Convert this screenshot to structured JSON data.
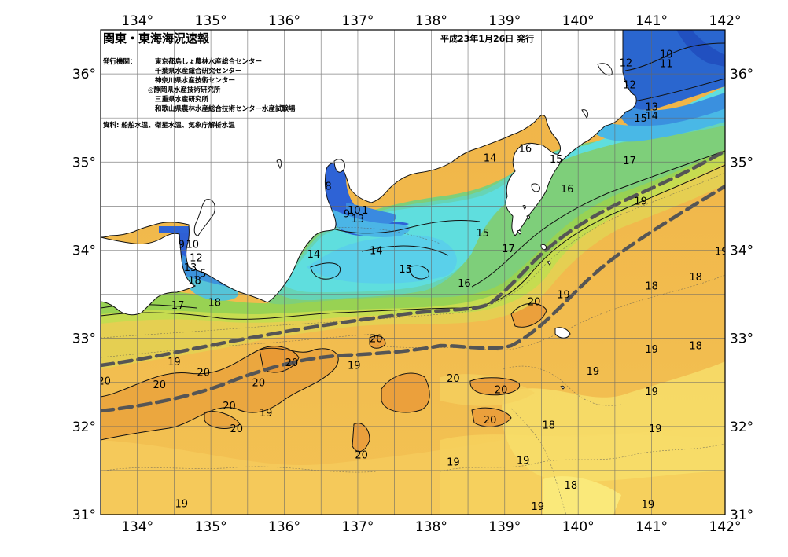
{
  "map": {
    "title": "関東・東海海況速報",
    "issue_date": "平成23年1月26日 発行",
    "publisher_label": "発行機関：",
    "publishers": [
      "東京都島しょ農林水産総合センター",
      "千葉県水産総合研究センター",
      "神奈川県水産技術センター",
      "◎静岡県水産技術研究所",
      "三重県水産研究所",
      "和歌山県農林水産総合技術センター水産試験場"
    ],
    "source": "資料: 船舶水温、衛星水温、気象庁解析水温",
    "lon_labels": [
      "134°",
      "135°",
      "136°",
      "137°",
      "138°",
      "139°",
      "140°",
      "141°",
      "142°"
    ],
    "lat_labels": [
      "36°",
      "35°",
      "34°",
      "33°",
      "32°",
      "31°"
    ],
    "lon_range": [
      133.5,
      142
    ],
    "lat_range": [
      31,
      36.5
    ],
    "contour_labels": [
      {
        "t": "10",
        "lon": 141.2,
        "lat": 36.23
      },
      {
        "t": "11",
        "lon": 141.2,
        "lat": 36.12
      },
      {
        "t": "12",
        "lon": 140.65,
        "lat": 36.13
      },
      {
        "t": "12",
        "lon": 140.7,
        "lat": 35.88
      },
      {
        "t": "13",
        "lon": 141.0,
        "lat": 35.63
      },
      {
        "t": "14",
        "lon": 141.0,
        "lat": 35.53
      },
      {
        "t": "15",
        "lon": 140.85,
        "lat": 35.5
      },
      {
        "t": "14",
        "lon": 138.8,
        "lat": 35.05
      },
      {
        "t": "16",
        "lon": 139.28,
        "lat": 35.16
      },
      {
        "t": "15",
        "lon": 139.7,
        "lat": 35.04
      },
      {
        "t": "16",
        "lon": 139.85,
        "lat": 34.7
      },
      {
        "t": "17",
        "lon": 140.7,
        "lat": 35.02
      },
      {
        "t": "8",
        "lon": 136.6,
        "lat": 34.73
      },
      {
        "t": "9",
        "lon": 136.85,
        "lat": 34.42
      },
      {
        "t": "10",
        "lon": 136.95,
        "lat": 34.46
      },
      {
        "t": "1",
        "lon": 137.1,
        "lat": 34.46
      },
      {
        "t": "13",
        "lon": 137.0,
        "lat": 34.36
      },
      {
        "t": "15",
        "lon": 138.7,
        "lat": 34.2
      },
      {
        "t": "14",
        "lon": 136.4,
        "lat": 33.96
      },
      {
        "t": "14",
        "lon": 137.25,
        "lat": 34.0
      },
      {
        "t": "15",
        "lon": 137.65,
        "lat": 33.79
      },
      {
        "t": "16",
        "lon": 138.45,
        "lat": 33.63
      },
      {
        "t": "17",
        "lon": 139.05,
        "lat": 34.02
      },
      {
        "t": "9",
        "lon": 134.6,
        "lat": 34.07
      },
      {
        "t": "10",
        "lon": 134.75,
        "lat": 34.07
      },
      {
        "t": "12",
        "lon": 134.8,
        "lat": 33.92
      },
      {
        "t": "13",
        "lon": 134.72,
        "lat": 33.81
      },
      {
        "t": "15",
        "lon": 134.85,
        "lat": 33.74
      },
      {
        "t": "18",
        "lon": 134.78,
        "lat": 33.66
      },
      {
        "t": "17",
        "lon": 134.55,
        "lat": 33.38
      },
      {
        "t": "18",
        "lon": 135.05,
        "lat": 33.41
      },
      {
        "t": "19",
        "lon": 140.85,
        "lat": 34.56
      },
      {
        "t": "19",
        "lon": 141.95,
        "lat": 33.99
      },
      {
        "t": "20",
        "lon": 139.4,
        "lat": 33.42
      },
      {
        "t": "19",
        "lon": 139.8,
        "lat": 33.5
      },
      {
        "t": "18",
        "lon": 141.0,
        "lat": 33.6
      },
      {
        "t": "18",
        "lon": 141.6,
        "lat": 33.7
      },
      {
        "t": "19",
        "lon": 141.0,
        "lat": 32.88
      },
      {
        "t": "18",
        "lon": 141.6,
        "lat": 32.92
      },
      {
        "t": "20",
        "lon": 137.25,
        "lat": 33.0
      },
      {
        "t": "20",
        "lon": 136.1,
        "lat": 32.73
      },
      {
        "t": "19",
        "lon": 136.95,
        "lat": 32.7
      },
      {
        "t": "19",
        "lon": 134.5,
        "lat": 32.74
      },
      {
        "t": "20",
        "lon": 134.9,
        "lat": 32.62
      },
      {
        "t": "20",
        "lon": 135.65,
        "lat": 32.5
      },
      {
        "t": "20",
        "lon": 134.3,
        "lat": 32.48
      },
      {
        "t": "20",
        "lon": 133.55,
        "lat": 32.52
      },
      {
        "t": "20",
        "lon": 135.25,
        "lat": 32.24
      },
      {
        "t": "19",
        "lon": 135.75,
        "lat": 32.16
      },
      {
        "t": "20",
        "lon": 138.3,
        "lat": 32.55
      },
      {
        "t": "20",
        "lon": 138.95,
        "lat": 32.42
      },
      {
        "t": "20",
        "lon": 138.8,
        "lat": 32.08
      },
      {
        "t": "18",
        "lon": 139.6,
        "lat": 32.02
      },
      {
        "t": "19",
        "lon": 140.2,
        "lat": 32.63
      },
      {
        "t": "19",
        "lon": 141.0,
        "lat": 32.4
      },
      {
        "t": "20",
        "lon": 135.35,
        "lat": 31.98
      },
      {
        "t": "20",
        "lon": 137.05,
        "lat": 31.68
      },
      {
        "t": "19",
        "lon": 138.3,
        "lat": 31.6
      },
      {
        "t": "19",
        "lon": 139.25,
        "lat": 31.62
      },
      {
        "t": "19",
        "lon": 141.05,
        "lat": 31.98
      },
      {
        "t": "18",
        "lon": 139.9,
        "lat": 31.34
      },
      {
        "t": "19",
        "lon": 134.6,
        "lat": 31.13
      },
      {
        "t": "19",
        "lon": 139.45,
        "lat": 31.1
      },
      {
        "t": "19",
        "lon": 140.95,
        "lat": 31.12
      }
    ]
  }
}
